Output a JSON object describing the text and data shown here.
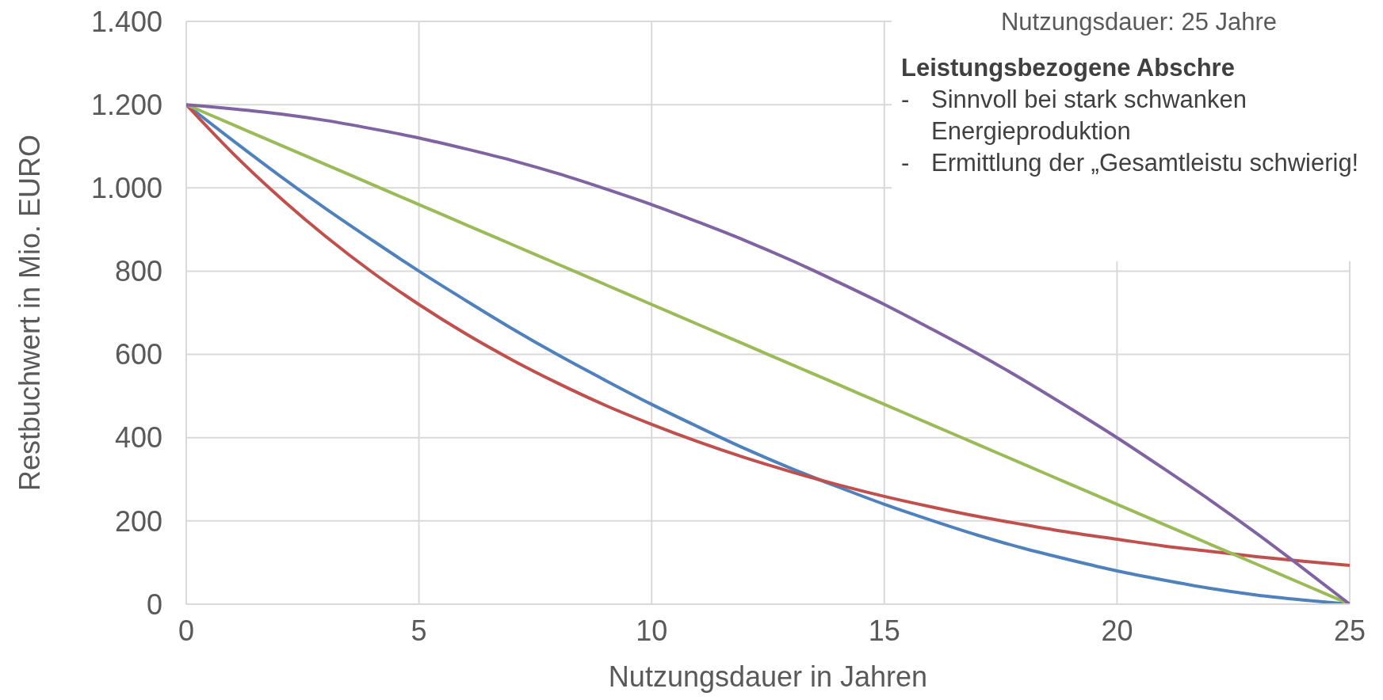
{
  "chart_data": {
    "type": "line",
    "xlabel": "Nutzungsdauer in Jahren",
    "ylabel": "Restbuchwert in Mio. EURO",
    "x": [
      0,
      1,
      2,
      3,
      4,
      5,
      6,
      7,
      8,
      9,
      10,
      11,
      12,
      13,
      14,
      15,
      16,
      17,
      18,
      19,
      20,
      21,
      22,
      23,
      24,
      25
    ],
    "series": [
      {
        "color": "#4f81bd",
        "values": [
          1200,
          1114,
          1030,
          950,
          874,
          800,
          730,
          662,
          598,
          538,
          480,
          426,
          374,
          326,
          282,
          240,
          202,
          166,
          134,
          106,
          80,
          58,
          38,
          22,
          10,
          0
        ]
      },
      {
        "color": "#c0504d",
        "values": [
          1200,
          1083,
          978,
          883,
          797,
          720,
          650,
          587,
          530,
          478,
          432,
          390,
          352,
          318,
          287,
          259,
          234,
          211,
          191,
          172,
          156,
          140,
          127,
          114,
          103,
          93
        ]
      },
      {
        "color": "#9bbb59",
        "values": [
          1200,
          1152,
          1104,
          1056,
          1008,
          960,
          912,
          864,
          816,
          768,
          720,
          672,
          624,
          576,
          528,
          480,
          432,
          384,
          336,
          288,
          240,
          192,
          144,
          96,
          48,
          0
        ]
      },
      {
        "color": "#8064a2",
        "values": [
          1200,
          1190,
          1178,
          1162,
          1142,
          1120,
          1094,
          1066,
          1034,
          998,
          960,
          918,
          874,
          826,
          774,
          720,
          662,
          602,
          538,
          470,
          400,
          326,
          250,
          170,
          86,
          0
        ]
      }
    ],
    "xlim": [
      0,
      25
    ],
    "xticks": [
      0,
      5,
      10,
      15,
      20,
      25
    ],
    "ylim": [
      0,
      1400
    ],
    "yticks": [
      0,
      200,
      400,
      600,
      800,
      {
        "value": 1000,
        "label": "1.000"
      },
      {
        "value": 1200,
        "label": "1.200"
      },
      {
        "value": 1400,
        "label": "1.400"
      }
    ],
    "grid": true,
    "marker": "none",
    "line_style": "solid",
    "annotations": [
      "Nutzungsdauer: 25 Jahre",
      "Leistungsbezogene Abschre",
      "- Sinnvoll bei stark schwanken Energieproduktion",
      "- Ermittlung der „Gesamtleistu schwierig!"
    ]
  }
}
